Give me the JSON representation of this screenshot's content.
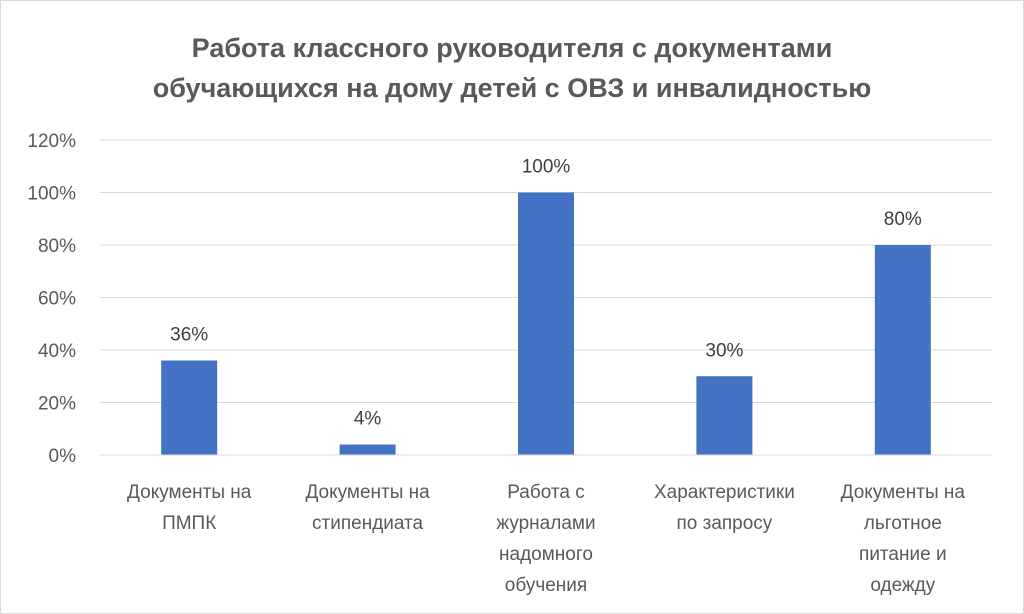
{
  "chart_data": {
    "type": "bar",
    "title_lines": [
      "Работа классного руководителя с документами",
      "обучающихся на дому детей с ОВЗ и инвалидностью"
    ],
    "categories": [
      [
        "Документы на",
        "ПМПК"
      ],
      [
        "Документы на",
        "стипендиата"
      ],
      [
        "Работа с",
        "журналами",
        "надомного",
        "обучения"
      ],
      [
        "Характеристики",
        "по запросу"
      ],
      [
        "Документы на",
        "льготное",
        "питание и",
        "одежду"
      ]
    ],
    "values": [
      36,
      4,
      100,
      30,
      80
    ],
    "data_labels": [
      "36%",
      "4%",
      "100%",
      "30%",
      "80%"
    ],
    "y_ticks": [
      "0%",
      "20%",
      "40%",
      "60%",
      "80%",
      "100%",
      "120%"
    ],
    "ylim": [
      0,
      120
    ],
    "grid": true,
    "legend": "none",
    "bar_color": "#4472c4",
    "grid_color": "#d9d9d9",
    "text_color": "#595959"
  }
}
